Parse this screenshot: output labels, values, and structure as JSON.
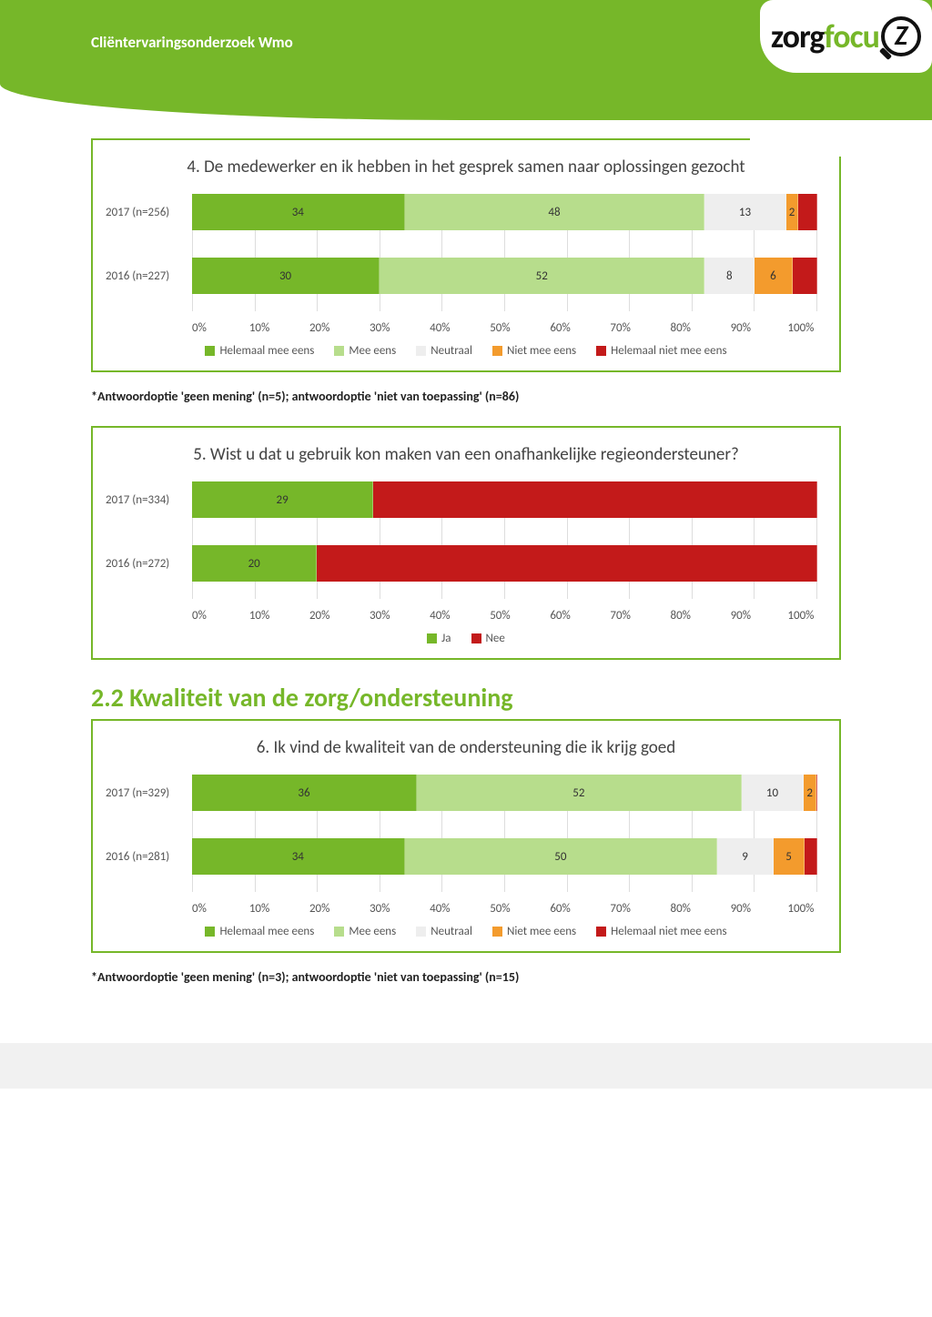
{
  "header": {
    "title": "Cliëntervaringsonderzoek Wmo",
    "logo": {
      "part1": "zorg",
      "part2": "focu",
      "z": "Z"
    }
  },
  "colors": {
    "helemaal_mee_eens": "#76b729",
    "mee_eens": "#b7dd8c",
    "neutraal": "#eeeeee",
    "niet_mee_eens": "#f39b2d",
    "helemaal_niet_mee_eens": "#c31a1a",
    "ja": "#76b729",
    "nee": "#c31a1a",
    "border": "#76b729"
  },
  "axis_ticks": [
    "0%",
    "10%",
    "20%",
    "30%",
    "40%",
    "50%",
    "60%",
    "70%",
    "80%",
    "90%",
    "100%"
  ],
  "legend5": [
    {
      "label": "Helemaal mee eens",
      "color": "#76b729"
    },
    {
      "label": "Mee eens",
      "color": "#b7dd8c"
    },
    {
      "label": "Neutraal",
      "color": "#eeeeee"
    },
    {
      "label": "Niet mee eens",
      "color": "#f39b2d"
    },
    {
      "label": "Helemaal niet mee eens",
      "color": "#c31a1a"
    }
  ],
  "legend2": [
    {
      "label": "Ja",
      "color": "#76b729"
    },
    {
      "label": "Nee",
      "color": "#c31a1a"
    }
  ],
  "chart4": {
    "title": "4. De medewerker en ik hebben in het gesprek samen naar oplossingen gezocht",
    "rows": [
      {
        "label": "2017 (n=256)",
        "segs": [
          {
            "v": 34,
            "c": "#76b729",
            "t": "34"
          },
          {
            "v": 48,
            "c": "#b7dd8c",
            "t": "48"
          },
          {
            "v": 13,
            "c": "#eeeeee",
            "t": "13"
          },
          {
            "v": 2,
            "c": "#f39b2d",
            "t": "2"
          },
          {
            "v": 3,
            "c": "#c31a1a",
            "t": ""
          }
        ]
      },
      {
        "label": "2016 (n=227)",
        "segs": [
          {
            "v": 30,
            "c": "#76b729",
            "t": "30"
          },
          {
            "v": 52,
            "c": "#b7dd8c",
            "t": "52"
          },
          {
            "v": 8,
            "c": "#eeeeee",
            "t": "8"
          },
          {
            "v": 6,
            "c": "#f39b2d",
            "t": "6"
          },
          {
            "v": 4,
            "c": "#c31a1a",
            "t": ""
          }
        ]
      }
    ],
    "footnote": "*Antwoordoptie 'geen mening' (n=5); antwoordoptie 'niet van toepassing' (n=86)"
  },
  "chart5": {
    "title": "5. Wist u dat u gebruik kon maken van een onafhankelijke regieondersteuner?",
    "rows": [
      {
        "label": "2017 (n=334)",
        "segs": [
          {
            "v": 29,
            "c": "#76b729",
            "t": "29"
          },
          {
            "v": 71,
            "c": "#c31a1a",
            "t": ""
          }
        ]
      },
      {
        "label": "2016 (n=272)",
        "segs": [
          {
            "v": 20,
            "c": "#76b729",
            "t": "20"
          },
          {
            "v": 80,
            "c": "#c31a1a",
            "t": ""
          }
        ]
      }
    ]
  },
  "section_heading": "2.2 Kwaliteit van de zorg/ondersteuning",
  "chart6": {
    "title": "6. Ik vind de kwaliteit van de ondersteuning die ik krijg goed",
    "rows": [
      {
        "label": "2017 (n=329)",
        "segs": [
          {
            "v": 36,
            "c": "#76b729",
            "t": "36"
          },
          {
            "v": 52,
            "c": "#b7dd8c",
            "t": "52"
          },
          {
            "v": 10,
            "c": "#eeeeee",
            "t": "10"
          },
          {
            "v": 2,
            "c": "#f39b2d",
            "t": "2"
          },
          {
            "v": 0,
            "c": "#c31a1a",
            "t": "0"
          }
        ]
      },
      {
        "label": "2016 (n=281)",
        "segs": [
          {
            "v": 34,
            "c": "#76b729",
            "t": "34"
          },
          {
            "v": 50,
            "c": "#b7dd8c",
            "t": "50"
          },
          {
            "v": 9,
            "c": "#eeeeee",
            "t": "9"
          },
          {
            "v": 5,
            "c": "#f39b2d",
            "t": "5"
          },
          {
            "v": 2,
            "c": "#c31a1a",
            "t": ""
          }
        ]
      }
    ],
    "footnote": "*Antwoordoptie 'geen mening' (n=3); antwoordoptie 'niet van toepassing' (n=15)"
  }
}
